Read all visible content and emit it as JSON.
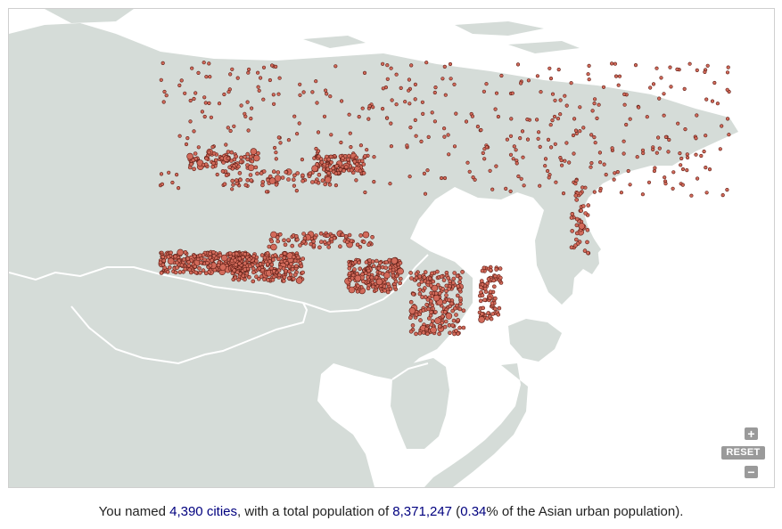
{
  "map": {
    "controls": {
      "zoom_in": "+",
      "reset": "RESET",
      "zoom_out": "−"
    },
    "colors": {
      "sea": "#ffffff",
      "land": "#d5dcd8",
      "border": "#ffffff",
      "dot_fill": "#d26a5a",
      "dot_stroke": "#5a1a12"
    }
  },
  "caption": {
    "prefix": "You named ",
    "cities": "4,390 cities",
    "middle": ", with a total population of ",
    "population": "8,371,247",
    "paren_open": " (",
    "percent": "0.34",
    "suffix": "% of the Asian urban population)."
  }
}
